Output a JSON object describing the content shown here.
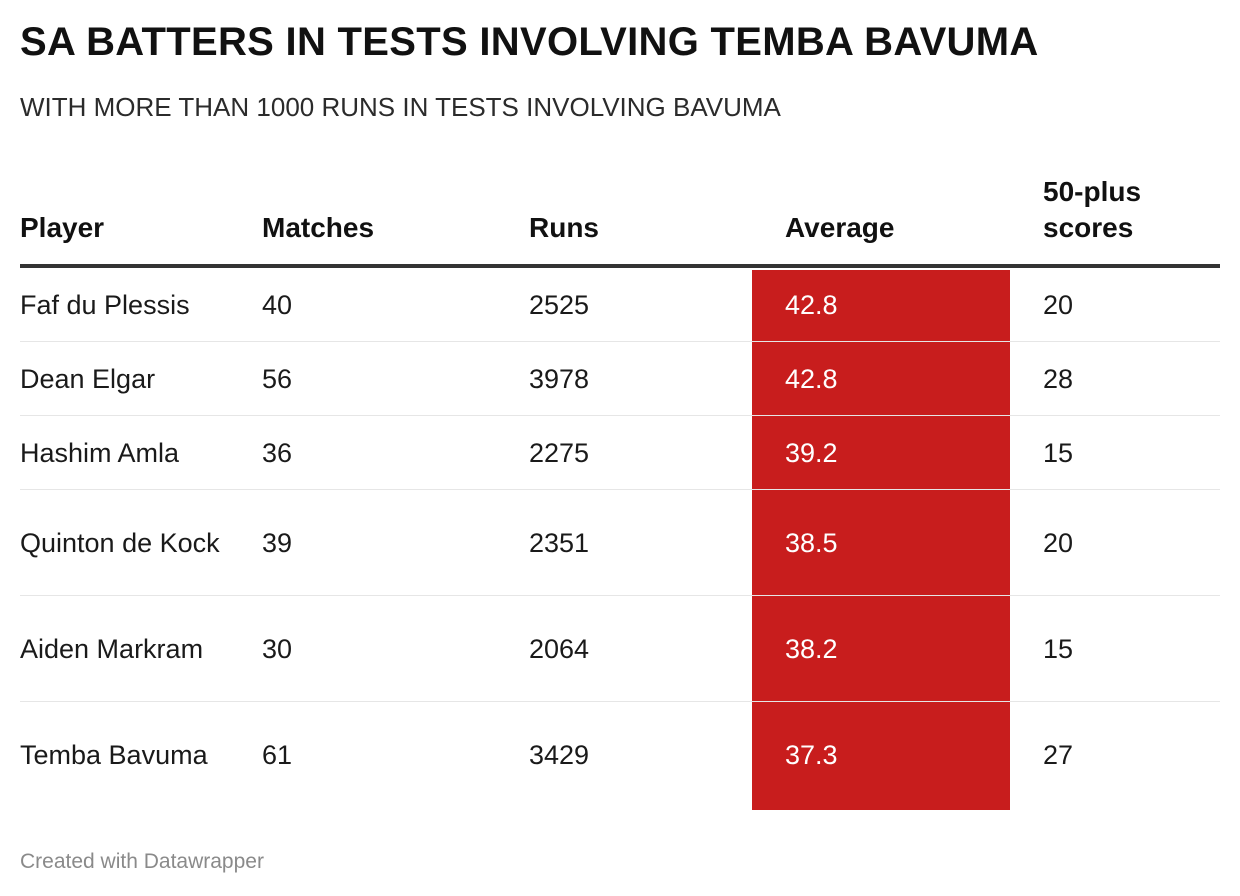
{
  "title": "SA BATTERS IN TESTS INVOLVING TEMBA BAVUMA",
  "subtitle": "WITH MORE THAN 1000 RUNS IN TESTS INVOLVING BAVUMA",
  "footer": "Created with Datawrapper",
  "colors": {
    "highlight_column": "#c81d1d",
    "header_rule": "#333333",
    "row_divider": "#e6e6e6"
  },
  "chart_data": {
    "type": "table",
    "title": "SA BATTERS IN TESTS INVOLVING TEMBA BAVUMA",
    "subtitle": "WITH MORE THAN 1000 RUNS IN TESTS INVOLVING BAVUMA",
    "columns": [
      "Player",
      "Matches",
      "Runs",
      "Average",
      "50-plus scores"
    ],
    "highlighted_column": "Average",
    "rows": [
      {
        "player": "Faf du Plessis",
        "matches": 40,
        "runs": 2525,
        "average": 42.8,
        "fifty_plus": 20
      },
      {
        "player": "Dean Elgar",
        "matches": 56,
        "runs": 3978,
        "average": 42.8,
        "fifty_plus": 28
      },
      {
        "player": "Hashim Amla",
        "matches": 36,
        "runs": 2275,
        "average": 39.2,
        "fifty_plus": 15
      },
      {
        "player": "Quinton de Kock",
        "matches": 39,
        "runs": 2351,
        "average": 38.5,
        "fifty_plus": 20
      },
      {
        "player": "Aiden Markram",
        "matches": 30,
        "runs": 2064,
        "average": 38.2,
        "fifty_plus": 15
      },
      {
        "player": "Temba Bavuma",
        "matches": 61,
        "runs": 3429,
        "average": 37.3,
        "fifty_plus": 27
      }
    ]
  }
}
